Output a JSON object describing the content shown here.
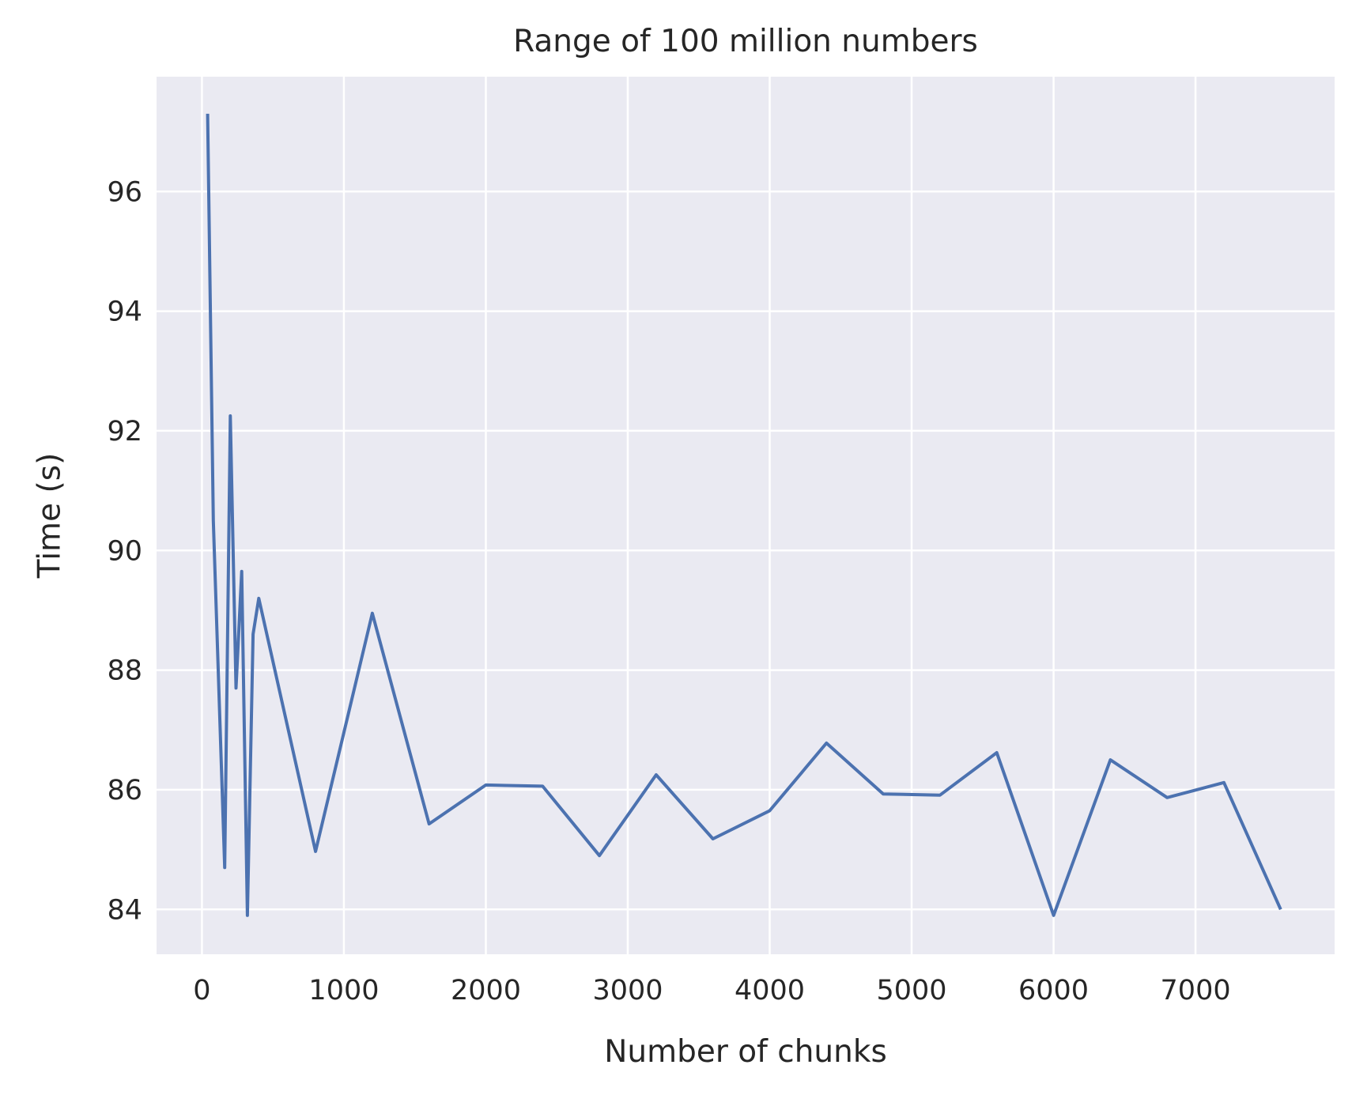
{
  "chart_data": {
    "type": "line",
    "title": "Range of 100 million numbers",
    "xlabel": "Number of chunks",
    "ylabel": "Time (s)",
    "xlim": [
      -320,
      7980
    ],
    "ylim": [
      83.25,
      97.92
    ],
    "xticks": [
      0,
      1000,
      2000,
      3000,
      4000,
      5000,
      6000,
      7000
    ],
    "yticks": [
      84,
      86,
      88,
      90,
      92,
      94,
      96
    ],
    "grid": true,
    "legend": "none",
    "colors": {
      "background": "#eaeaf2",
      "grid": "#ffffff",
      "line": "#4c72b0",
      "text": "#262626"
    },
    "series": [
      {
        "points": [
          [
            40,
            97.3
          ],
          [
            80,
            90.5
          ],
          [
            160,
            84.7
          ],
          [
            200,
            92.25
          ],
          [
            240,
            87.7
          ],
          [
            280,
            89.65
          ],
          [
            320,
            83.9
          ],
          [
            360,
            88.6
          ],
          [
            400,
            89.2
          ],
          [
            800,
            84.97
          ],
          [
            1200,
            88.95
          ],
          [
            1600,
            85.43
          ],
          [
            2000,
            86.08
          ],
          [
            2400,
            86.06
          ],
          [
            2800,
            84.9
          ],
          [
            3200,
            86.25
          ],
          [
            3600,
            85.18
          ],
          [
            4000,
            85.65
          ],
          [
            4400,
            86.78
          ],
          [
            4800,
            85.93
          ],
          [
            5200,
            85.91
          ],
          [
            5600,
            86.62
          ],
          [
            6000,
            83.9
          ],
          [
            6400,
            86.5
          ],
          [
            6800,
            85.87
          ],
          [
            7200,
            86.12
          ],
          [
            7600,
            84.0
          ]
        ]
      }
    ]
  }
}
